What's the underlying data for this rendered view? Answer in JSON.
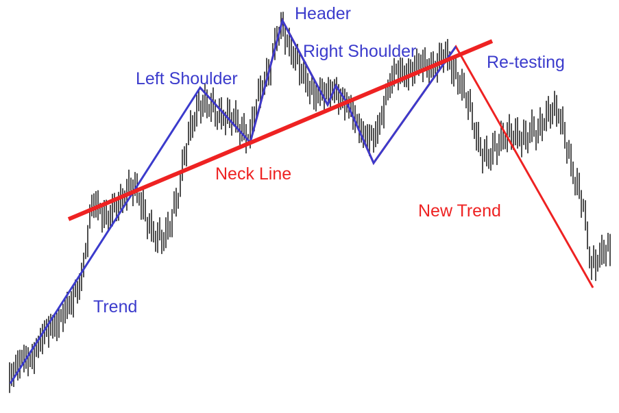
{
  "chart_data": {
    "type": "line",
    "title": "",
    "xlabel": "",
    "ylabel": "",
    "grid": false,
    "legend": "none",
    "colors": {
      "price": "#222222",
      "blue_trend": "#3b3bcc",
      "red_trend": "#ee2222",
      "blue_text": "#3b3bcc",
      "red_text": "#ee2222"
    },
    "annotations": {
      "header": "Header",
      "right_shoulder": "Right Shoulder",
      "re_testing": "Re-testing",
      "left_shoulder": "Left Shoulder",
      "neck_line": "Neck Line",
      "new_trend": "New Trend",
      "trend": "Trend"
    },
    "blue_path": [
      [
        15,
        560
      ],
      [
        292,
        128
      ],
      [
        365,
        208
      ],
      [
        412,
        30
      ],
      [
        478,
        153
      ],
      [
        490,
        125
      ],
      [
        505,
        148
      ],
      [
        545,
        238
      ],
      [
        665,
        68
      ]
    ],
    "red_path": [
      [
        292,
        128
      ],
      [
        365,
        208
      ],
      [
        412,
        30
      ],
      [
        478,
        153
      ],
      [
        490,
        125
      ],
      [
        505,
        148
      ],
      [
        545,
        238
      ],
      [
        665,
        68
      ],
      [
        865,
        420
      ]
    ],
    "neckline": [
      [
        100,
        320
      ],
      [
        718,
        60
      ]
    ],
    "price_path": [
      [
        14,
        548
      ],
      [
        30,
        533
      ],
      [
        45,
        522
      ],
      [
        60,
        500
      ],
      [
        75,
        478
      ],
      [
        90,
        465
      ],
      [
        105,
        445
      ],
      [
        120,
        400
      ],
      [
        128,
        350
      ],
      [
        135,
        300
      ],
      [
        145,
        305
      ],
      [
        160,
        318
      ],
      [
        175,
        300
      ],
      [
        190,
        268
      ],
      [
        200,
        285
      ],
      [
        210,
        310
      ],
      [
        220,
        330
      ],
      [
        230,
        350
      ],
      [
        240,
        355
      ],
      [
        250,
        320
      ],
      [
        262,
        275
      ],
      [
        272,
        220
      ],
      [
        282,
        175
      ],
      [
        292,
        150
      ],
      [
        305,
        160
      ],
      [
        320,
        165
      ],
      [
        335,
        175
      ],
      [
        350,
        185
      ],
      [
        365,
        200
      ],
      [
        375,
        155
      ],
      [
        385,
        120
      ],
      [
        395,
        95
      ],
      [
        405,
        55
      ],
      [
        412,
        45
      ],
      [
        420,
        60
      ],
      [
        430,
        80
      ],
      [
        440,
        110
      ],
      [
        450,
        128
      ],
      [
        460,
        135
      ],
      [
        470,
        138
      ],
      [
        478,
        143
      ],
      [
        490,
        130
      ],
      [
        505,
        155
      ],
      [
        515,
        170
      ],
      [
        525,
        185
      ],
      [
        535,
        200
      ],
      [
        545,
        210
      ],
      [
        555,
        180
      ],
      [
        565,
        130
      ],
      [
        575,
        112
      ],
      [
        590,
        108
      ],
      [
        605,
        100
      ],
      [
        620,
        98
      ],
      [
        635,
        95
      ],
      [
        650,
        85
      ],
      [
        665,
        105
      ],
      [
        675,
        130
      ],
      [
        685,
        160
      ],
      [
        695,
        195
      ],
      [
        705,
        225
      ],
      [
        715,
        235
      ],
      [
        725,
        215
      ],
      [
        735,
        195
      ],
      [
        745,
        200
      ],
      [
        755,
        205
      ],
      [
        765,
        200
      ],
      [
        775,
        190
      ],
      [
        785,
        200
      ],
      [
        795,
        175
      ],
      [
        805,
        155
      ],
      [
        815,
        170
      ],
      [
        822,
        195
      ],
      [
        830,
        225
      ],
      [
        838,
        255
      ],
      [
        845,
        280
      ],
      [
        852,
        310
      ],
      [
        858,
        360
      ],
      [
        863,
        390
      ],
      [
        870,
        378
      ],
      [
        880,
        368
      ],
      [
        890,
        372
      ]
    ]
  }
}
